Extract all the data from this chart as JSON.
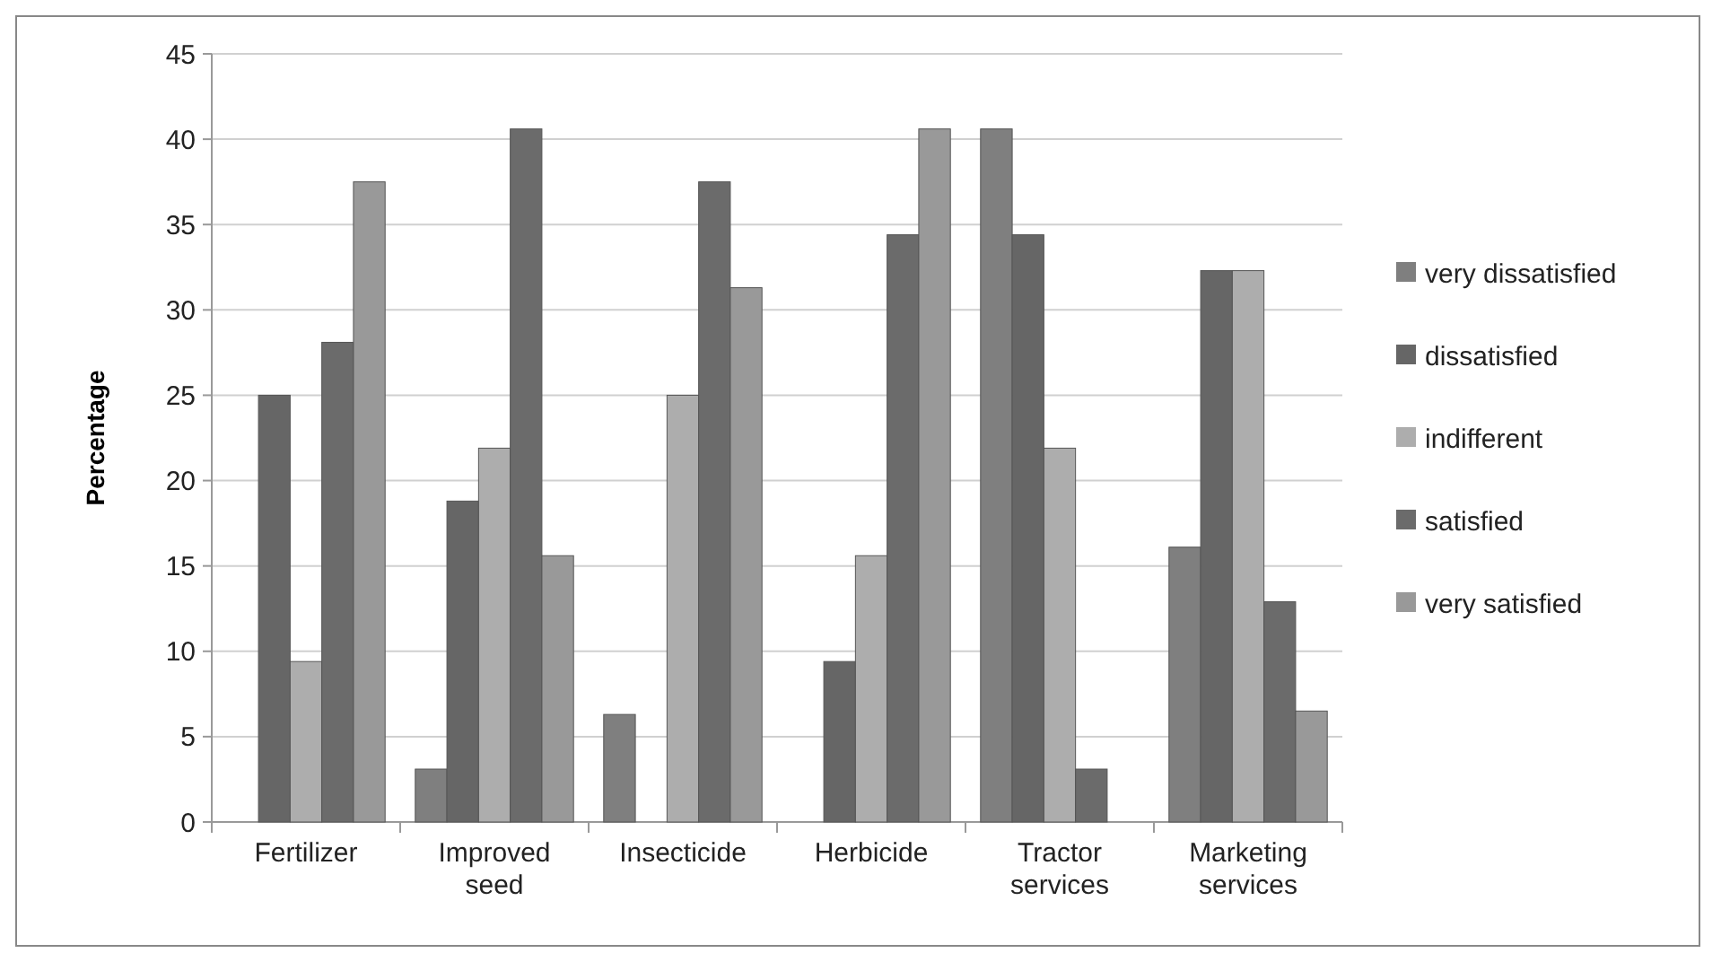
{
  "chart_data": {
    "type": "bar",
    "ylabel": "Percentage",
    "categories": [
      "Fertilizer",
      "Improved seed",
      "Insecticide",
      "Herbicide",
      "Tractor services",
      "Marketing services"
    ],
    "series": [
      {
        "name": "very dissatisfied",
        "color": "#7f7f7f",
        "values": [
          0,
          3.1,
          6.3,
          0,
          40.6,
          16.1
        ]
      },
      {
        "name": "dissatisfied",
        "color": "#666666",
        "values": [
          25,
          18.8,
          0,
          9.4,
          34.4,
          32.3
        ]
      },
      {
        "name": "indifferent",
        "color": "#adadad",
        "values": [
          9.4,
          21.9,
          25,
          15.6,
          21.9,
          32.3
        ]
      },
      {
        "name": "satisfied",
        "color": "#6b6b6b",
        "values": [
          28.1,
          40.6,
          37.5,
          34.4,
          3.1,
          12.9
        ]
      },
      {
        "name": "very satisfied",
        "color": "#999999",
        "values": [
          37.5,
          15.6,
          31.3,
          40.6,
          0,
          6.5
        ]
      }
    ],
    "ylim": [
      0,
      45
    ],
    "yticks": [
      0,
      5,
      10,
      15,
      20,
      25,
      30,
      35,
      40,
      45
    ],
    "grid": "y",
    "legend": "right"
  }
}
